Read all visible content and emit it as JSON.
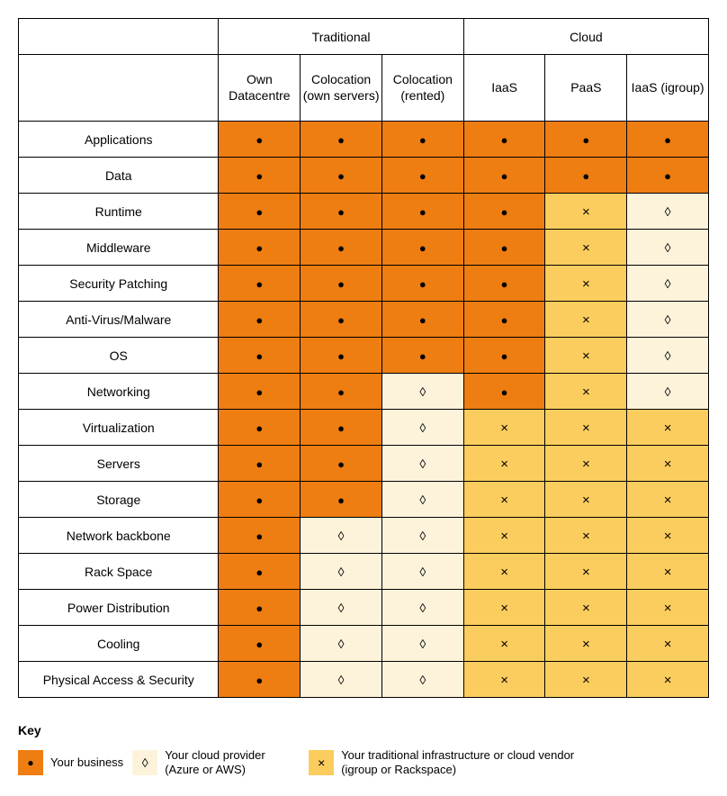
{
  "colors": {
    "business": "#ee7d12",
    "provider": "#fdf3db",
    "vendor": "#fbcd5e",
    "border": "#000000",
    "background": "#ffffff",
    "text": "#000000"
  },
  "symbols": {
    "business": "●",
    "provider": "◊",
    "vendor": "×"
  },
  "table": {
    "group_headers": [
      "",
      "Traditional",
      "Cloud"
    ],
    "group_spans": [
      1,
      3,
      3
    ],
    "columns": [
      "Own Datacentre",
      "Colocation (own servers)",
      "Colocation (rented)",
      "IaaS",
      "PaaS",
      "IaaS (igroup)"
    ],
    "rows": [
      {
        "label": "Applications",
        "cells": [
          "business",
          "business",
          "business",
          "business",
          "business",
          "business"
        ]
      },
      {
        "label": "Data",
        "cells": [
          "business",
          "business",
          "business",
          "business",
          "business",
          "business"
        ]
      },
      {
        "label": "Runtime",
        "cells": [
          "business",
          "business",
          "business",
          "business",
          "vendor",
          "provider"
        ]
      },
      {
        "label": "Middleware",
        "cells": [
          "business",
          "business",
          "business",
          "business",
          "vendor",
          "provider"
        ]
      },
      {
        "label": "Security Patching",
        "cells": [
          "business",
          "business",
          "business",
          "business",
          "vendor",
          "provider"
        ]
      },
      {
        "label": "Anti-Virus/Malware",
        "cells": [
          "business",
          "business",
          "business",
          "business",
          "vendor",
          "provider"
        ]
      },
      {
        "label": "OS",
        "cells": [
          "business",
          "business",
          "business",
          "business",
          "vendor",
          "provider"
        ]
      },
      {
        "label": "Networking",
        "cells": [
          "business",
          "business",
          "provider",
          "business",
          "vendor",
          "provider"
        ]
      },
      {
        "label": "Virtualization",
        "cells": [
          "business",
          "business",
          "provider",
          "vendor",
          "vendor",
          "vendor"
        ]
      },
      {
        "label": "Servers",
        "cells": [
          "business",
          "business",
          "provider",
          "vendor",
          "vendor",
          "vendor"
        ]
      },
      {
        "label": "Storage",
        "cells": [
          "business",
          "business",
          "provider",
          "vendor",
          "vendor",
          "vendor"
        ]
      },
      {
        "label": "Network backbone",
        "cells": [
          "business",
          "provider",
          "provider",
          "vendor",
          "vendor",
          "vendor"
        ]
      },
      {
        "label": "Rack Space",
        "cells": [
          "business",
          "provider",
          "provider",
          "vendor",
          "vendor",
          "vendor"
        ]
      },
      {
        "label": "Power Distribution",
        "cells": [
          "business",
          "provider",
          "provider",
          "vendor",
          "vendor",
          "vendor"
        ]
      },
      {
        "label": "Cooling",
        "cells": [
          "business",
          "provider",
          "provider",
          "vendor",
          "vendor",
          "vendor"
        ]
      },
      {
        "label": "Physical Access & Security",
        "cells": [
          "business",
          "provider",
          "provider",
          "vendor",
          "vendor",
          "vendor"
        ]
      }
    ]
  },
  "key": {
    "title": "Key",
    "items": [
      {
        "kind": "business",
        "label": "Your business"
      },
      {
        "kind": "provider",
        "label": "Your cloud provider (Azure or AWS)"
      },
      {
        "kind": "vendor",
        "label": "Your traditional infrastructure or cloud vendor (igroup or Rackspace)"
      }
    ]
  }
}
